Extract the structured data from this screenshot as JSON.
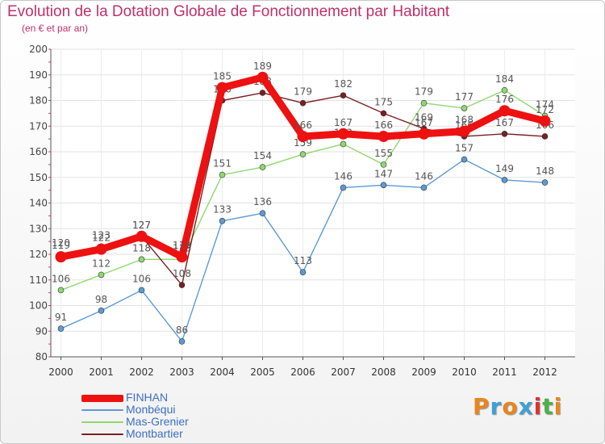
{
  "header": {
    "title": "Evolution de la Dotation Globale de Fonctionnement par Habitant",
    "subtitle": "(en € et par an)"
  },
  "chart_data": {
    "type": "line",
    "x": [
      "2000",
      "2001",
      "2002",
      "2003",
      "2004",
      "2005",
      "2006",
      "2007",
      "2008",
      "2009",
      "2010",
      "2011",
      "2012"
    ],
    "ylim": [
      80,
      200
    ],
    "yticks": [
      80,
      90,
      100,
      110,
      120,
      130,
      140,
      150,
      160,
      170,
      180,
      190,
      200
    ],
    "grid": true,
    "legend": "bottom-left",
    "series": [
      {
        "name": "Monbéqui",
        "color": "#5b9bd5",
        "values": [
          91,
          98,
          106,
          86,
          133,
          136,
          113,
          146,
          147,
          146,
          157,
          149,
          148
        ]
      },
      {
        "name": "Mas-Grenier",
        "color": "#8fd870",
        "values": [
          106,
          112,
          118,
          118,
          151,
          154,
          159,
          163,
          155,
          179,
          177,
          184,
          174
        ]
      },
      {
        "name": "Montbartier",
        "color": "#7a2020",
        "values": [
          120,
          123,
          127,
          108,
          180,
          183,
          179,
          182,
          175,
          169,
          166,
          167,
          166
        ]
      },
      {
        "name": "FINHAN",
        "color": "#ee1111",
        "values": [
          119,
          122,
          127,
          119,
          185,
          189,
          166,
          167,
          166,
          167,
          168,
          176,
          172
        ]
      }
    ]
  },
  "legend": {
    "items": [
      {
        "label": "FINHAN",
        "color": "#ee1111"
      },
      {
        "label": "Monbéqui",
        "color": "#5b9bd5"
      },
      {
        "label": "Mas-Grenier",
        "color": "#8fd870"
      },
      {
        "label": "Montbartier",
        "color": "#7a2020"
      }
    ]
  },
  "brand": {
    "letters": [
      "P",
      "r",
      "o",
      "x",
      "i",
      "t",
      "i"
    ],
    "colors": [
      "#e8861c",
      "#3fa0d8",
      "#e8861c",
      "#3fa0d8",
      "#e03030",
      "#49b04a",
      "#e8861c"
    ]
  }
}
